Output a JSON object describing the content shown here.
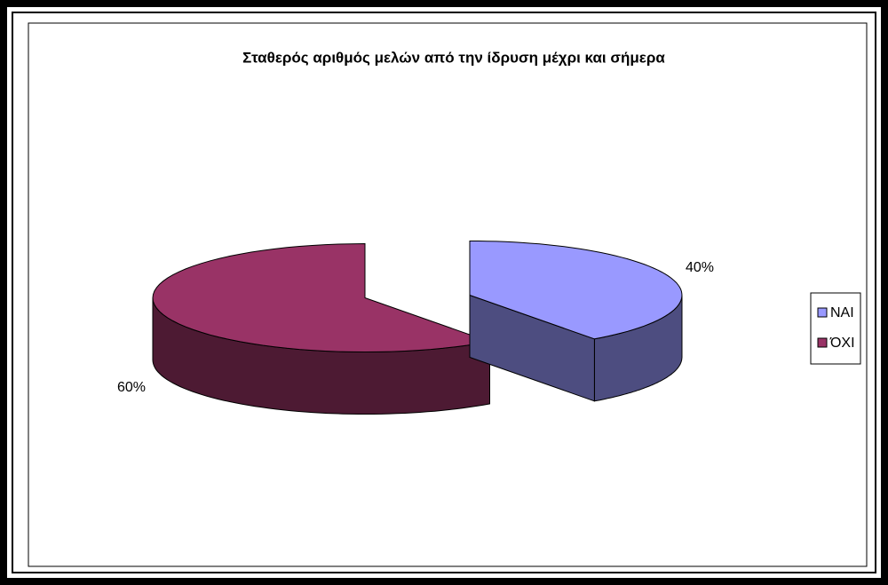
{
  "chart_data": {
    "type": "pie3d",
    "title": "Σταθερός αριθμός μελών από την ίδρυση μέχρι και σήμερα",
    "categories": [
      "ΝΑΙ",
      "ΌΧΙ"
    ],
    "values": [
      40,
      60
    ],
    "value_labels": [
      "40%",
      "60%"
    ],
    "colors": [
      "#9999ff",
      "#993366"
    ],
    "legend": "right"
  }
}
